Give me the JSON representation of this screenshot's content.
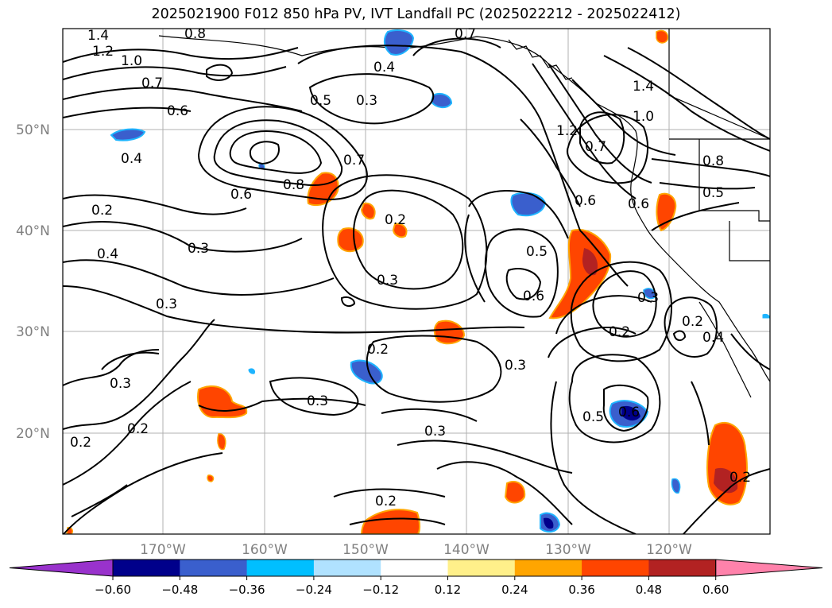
{
  "title": "2025021900 F012 850 hPa PV, IVT Landfall PC (2025022212 - 2025022412)",
  "map": {
    "lat_labels": [
      "50°N",
      "40°N",
      "30°N",
      "20°N"
    ],
    "lon_labels": [
      "170°W",
      "160°W",
      "150°W",
      "140°W",
      "130°W",
      "120°W"
    ],
    "contour_labels": [
      "1.4",
      "1.2",
      "1.0",
      "0.7",
      "0.6",
      "0.4",
      "0.2",
      "0.4",
      "0.3",
      "0.3",
      "0.8",
      "0.6",
      "0.8",
      "0.7",
      "0.5",
      "0.3",
      "0.4",
      "0.7",
      "0.2",
      "0.3",
      "0.5",
      "0.6",
      "0.2",
      "0.3",
      "0.3",
      "0.3",
      "0.2",
      "0.2",
      "0.3",
      "0.2",
      "0.5",
      "0.6",
      "0.6",
      "0.2",
      "0.3",
      "0.2",
      "0.4",
      "1.2",
      "1.4",
      "1.0",
      "0.8",
      "0.5",
      "0.6",
      "0.7",
      "0.2"
    ],
    "colors": {
      "pos_light": "#ffea8a",
      "pos_orange": "#ffa500",
      "pos_red": "#ff4500",
      "pos_dark": "#b22222",
      "neg_light": "#1eb4ff",
      "neg_mid": "#3a5fcd",
      "neg_dark": "#00008b"
    }
  },
  "colorbar": {
    "ticks": [
      "−0.60",
      "−0.48",
      "−0.36",
      "−0.24",
      "−0.12",
      "0.12",
      "0.24",
      "0.36",
      "0.48",
      "0.60"
    ],
    "colors": [
      "#9932cc",
      "#00008b",
      "#3a5fcd",
      "#00bfff",
      "#b0e2ff",
      "#ffffff",
      "#fff08a",
      "#ffa500",
      "#ff4500",
      "#b22222",
      "#ff82ab"
    ]
  }
}
